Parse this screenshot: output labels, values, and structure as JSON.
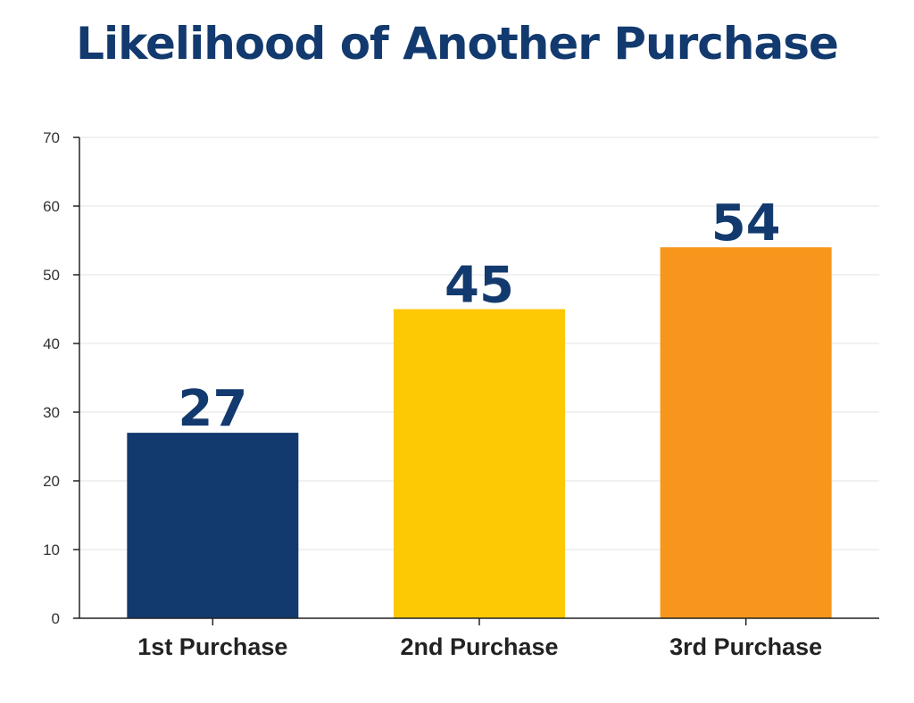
{
  "chart_data": {
    "type": "bar",
    "title": "Likelihood of Another Purchase",
    "xlabel": "",
    "ylabel": "",
    "categories": [
      "1st Purchase",
      "2nd Purchase",
      "3rd Purchase"
    ],
    "values": [
      27,
      45,
      54
    ],
    "value_labels": [
      "27",
      "45",
      "54"
    ],
    "ylim": [
      0,
      70
    ],
    "yticks": [
      0,
      10,
      20,
      30,
      40,
      50,
      60,
      70
    ],
    "grid": true,
    "legend": "none",
    "bar_colors": [
      "#123a6e",
      "#fdc804",
      "#f6961c"
    ],
    "value_label_color": "#123a6e"
  }
}
